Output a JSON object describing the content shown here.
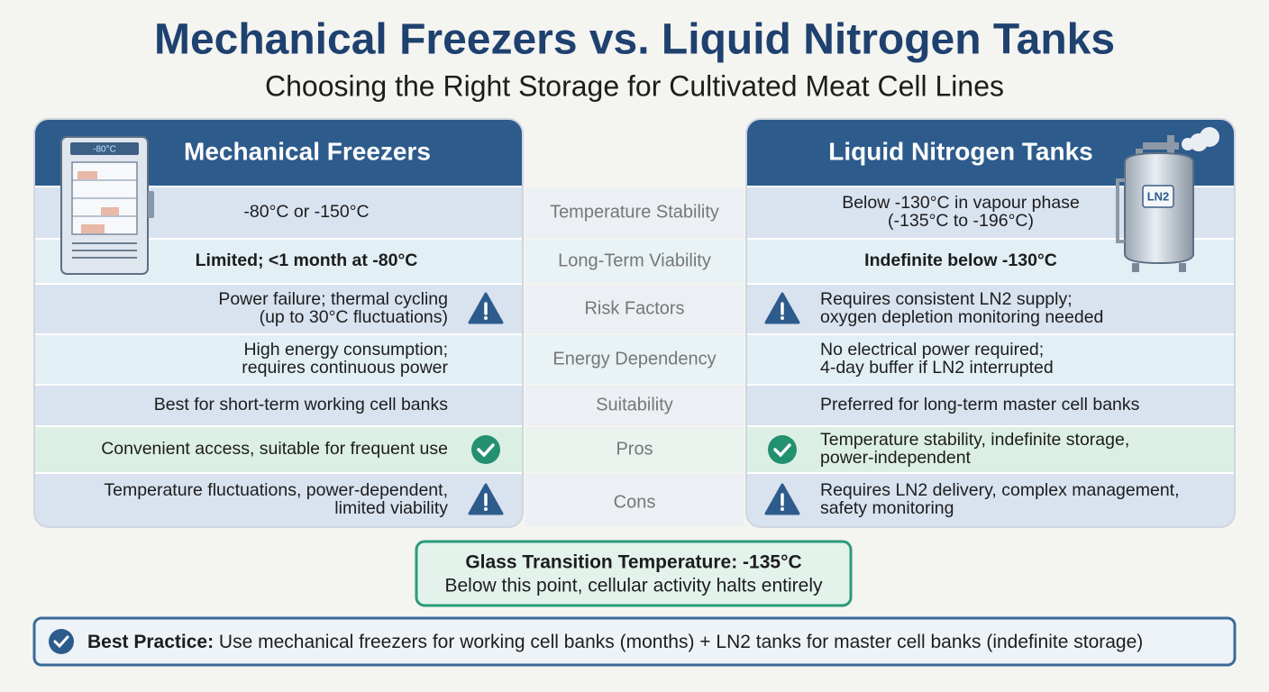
{
  "header": {
    "title": "Mechanical Freezers vs. Liquid Nitrogen Tanks",
    "subtitle": "Choosing the Right Storage for Cultivated Meat Cell Lines"
  },
  "left": {
    "title": "Mechanical Freezers",
    "icon_label": "-80°C"
  },
  "right": {
    "title": "Liquid Nitrogen Tanks",
    "icon_label": "LN2"
  },
  "rows": [
    {
      "label": "Temperature Stability",
      "left": [
        "-80°C or -150°C"
      ],
      "right": [
        "Below -130°C in vapour phase",
        "(-135°C to -196°C)"
      ]
    },
    {
      "label": "Long-Term Viability",
      "left": [
        "Limited; <1 month at -80°C"
      ],
      "right": [
        "Indefinite below -130°C"
      ]
    },
    {
      "label": "Risk Factors",
      "left": [
        "Power failure; thermal cycling",
        "(up to 30°C fluctuations)"
      ],
      "right": [
        "Requires consistent LN2 supply;",
        "oxygen depletion monitoring needed"
      ]
    },
    {
      "label": "Energy Dependency",
      "left": [
        "High energy consumption;",
        "requires continuous power"
      ],
      "right": [
        "No electrical power required;",
        "4-day buffer if LN2 interrupted"
      ]
    },
    {
      "label": "Suitability",
      "left": [
        "Best for short-term working cell banks"
      ],
      "right": [
        "Preferred for long-term master cell banks"
      ]
    },
    {
      "label": "Pros",
      "left": [
        "Convenient access, suitable for frequent use"
      ],
      "right": [
        "Temperature stability, indefinite storage,",
        "power-independent"
      ]
    },
    {
      "label": "Cons",
      "left": [
        "Temperature fluctuations, power-dependent,",
        "limited viability"
      ],
      "right": [
        "Requires LN2 delivery, complex management,",
        "safety monitoring"
      ]
    }
  ],
  "note": {
    "title": "Glass Transition Temperature: -135°C",
    "text": "Below this point, cellular activity halts entirely"
  },
  "footer": {
    "label": "Best Practice:",
    "text": "Use mechanical freezers for working cell banks (months) + LN2 tanks for master cell banks (indefinite storage)"
  }
}
